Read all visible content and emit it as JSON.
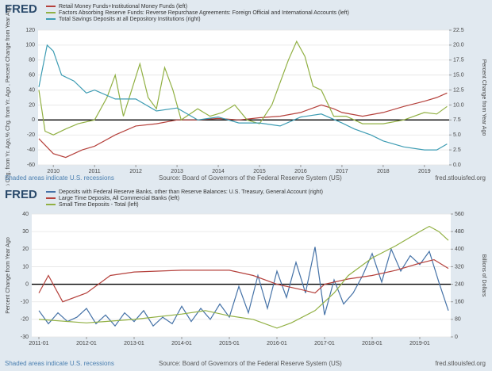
{
  "chart_data": [
    {
      "type": "line",
      "logo": "FRED",
      "series": [
        {
          "name": "Retail Money Funds+Institutional Money Funds (left)",
          "color": "#b5413c",
          "axis": "y",
          "x": [
            2009.65,
            2010.0,
            2010.3,
            2010.7,
            2011.0,
            2011.5,
            2012.0,
            2012.5,
            2013.0,
            2013.5,
            2014.0,
            2014.5,
            2015.0,
            2015.5,
            2016.0,
            2016.5,
            2016.8,
            2017.0,
            2017.5,
            2018.0,
            2018.5,
            2019.0,
            2019.3,
            2019.55
          ],
          "values": [
            -25,
            -45,
            -50,
            -40,
            -35,
            -20,
            -8,
            -5,
            0,
            0,
            2,
            0,
            3,
            5,
            10,
            20,
            15,
            10,
            5,
            10,
            18,
            25,
            30,
            36
          ]
        },
        {
          "name": "Factors Absorbing Reserve Funds: Reverse Repurchase Agreements: Foreign Official and International Accounts (left)",
          "color": "#91b043",
          "axis": "y",
          "x": [
            2009.65,
            2009.8,
            2010.0,
            2010.3,
            2010.6,
            2011.0,
            2011.3,
            2011.5,
            2011.7,
            2011.9,
            2012.1,
            2012.3,
            2012.5,
            2012.7,
            2012.9,
            2013.1,
            2013.5,
            2013.8,
            2014.1,
            2014.4,
            2014.7,
            2015.0,
            2015.3,
            2015.5,
            2015.7,
            2015.9,
            2016.1,
            2016.3,
            2016.5,
            2016.8,
            2017.1,
            2017.5,
            2018.0,
            2018.5,
            2019.0,
            2019.3,
            2019.55
          ],
          "values": [
            40,
            -15,
            -20,
            -12,
            -5,
            0,
            30,
            60,
            5,
            40,
            75,
            30,
            15,
            70,
            40,
            0,
            15,
            5,
            10,
            20,
            0,
            -5,
            20,
            50,
            80,
            105,
            85,
            45,
            40,
            5,
            5,
            -5,
            -5,
            0,
            10,
            8,
            18
          ]
        },
        {
          "name": "Total Savings Deposits at all Depository Institutions (right)",
          "color": "#3d9cb3",
          "axis": "y2",
          "x": [
            2009.65,
            2009.85,
            2010.0,
            2010.2,
            2010.5,
            2010.8,
            2011.0,
            2011.5,
            2012.0,
            2012.5,
            2013.0,
            2013.5,
            2014.0,
            2014.5,
            2015.0,
            2015.5,
            2016.0,
            2016.5,
            2017.0,
            2017.3,
            2017.7,
            2018.0,
            2018.5,
            2019.0,
            2019.3,
            2019.55
          ],
          "values": [
            13,
            20,
            19,
            15,
            14,
            12,
            12.5,
            11,
            11,
            9,
            9.5,
            7.5,
            8,
            7,
            7,
            6.5,
            8,
            8.5,
            7,
            6,
            5,
            4,
            3,
            2.5,
            2.5,
            3.5
          ]
        }
      ],
      "xlim": [
        2009.63,
        2019.6
      ],
      "xticks": [
        2010,
        2011,
        2012,
        2013,
        2014,
        2015,
        2016,
        2017,
        2018,
        2019
      ],
      "ylim": [
        -60,
        120
      ],
      "yticks": [
        -60,
        -40,
        -20,
        0,
        20,
        40,
        60,
        80,
        100,
        120
      ],
      "y2lim": [
        0,
        22.5
      ],
      "y2ticks": [
        {
          "value": 0,
          "label": "0.0"
        },
        2.5,
        {
          "value": 5,
          "label": "5.0"
        },
        7.5,
        {
          "value": 10,
          "label": "10.0"
        },
        12.5,
        {
          "value": 15,
          "label": "15.0"
        },
        17.5,
        {
          "value": 20,
          "label": "20.0"
        },
        22.5
      ],
      "ylabel": "% Chg. from Yr. Ago,% Chg. from Yr. Ago , Percent Change from Year Ago",
      "y2label": "Percent Change from Year Ago",
      "note": "Shaded areas indicate U.S. recessions",
      "source": "Source: Board of Governors of the Federal Reserve System (US)",
      "site": "fred.stlouisfed.org"
    },
    {
      "type": "line",
      "logo": "FRED",
      "series": [
        {
          "name": "Deposits with Federal Reserve Banks, other than Reserve Balances: U.S. Treasury, General Account (right)",
          "color": "#4572a7",
          "axis": "y2",
          "x": [
            2011.0,
            2011.2,
            2011.4,
            2011.6,
            2011.8,
            2012.0,
            2012.2,
            2012.4,
            2012.6,
            2012.8,
            2013.0,
            2013.2,
            2013.4,
            2013.6,
            2013.8,
            2014.0,
            2014.2,
            2014.4,
            2014.6,
            2014.8,
            2015.0,
            2015.2,
            2015.4,
            2015.6,
            2015.8,
            2016.0,
            2016.2,
            2016.4,
            2016.6,
            2016.8,
            2017.0,
            2017.2,
            2017.4,
            2017.6,
            2017.8,
            2018.0,
            2018.2,
            2018.4,
            2018.6,
            2018.8,
            2019.0,
            2019.2,
            2019.4,
            2019.6
          ],
          "values": [
            120,
            60,
            110,
            70,
            90,
            130,
            60,
            100,
            50,
            110,
            70,
            120,
            50,
            90,
            60,
            140,
            70,
            130,
            80,
            150,
            90,
            230,
            110,
            280,
            130,
            300,
            180,
            340,
            200,
            410,
            100,
            260,
            150,
            200,
            280,
            380,
            250,
            400,
            300,
            370,
            330,
            390,
            250,
            120
          ]
        },
        {
          "name": "Large Time Deposits, All Commercial Banks (left)",
          "color": "#b5413c",
          "axis": "y",
          "x": [
            2011.0,
            2011.2,
            2011.5,
            2012.0,
            2012.5,
            2013.0,
            2014.0,
            2014.5,
            2015.0,
            2015.5,
            2016.0,
            2016.5,
            2016.8,
            2017.0,
            2017.5,
            2018.0,
            2018.5,
            2019.0,
            2019.3,
            2019.6
          ],
          "values": [
            -5,
            5,
            -10,
            -5,
            5,
            7,
            8,
            8,
            8,
            5,
            0,
            -3,
            -5,
            0,
            3,
            5,
            8,
            12,
            14,
            9
          ]
        },
        {
          "name": "Small Time Deposits - Total (left)",
          "color": "#91b043",
          "axis": "y",
          "x": [
            2011.0,
            2012.0,
            2013.0,
            2014.0,
            2014.5,
            2015.0,
            2015.5,
            2016.0,
            2016.3,
            2016.8,
            2017.2,
            2017.5,
            2018.0,
            2018.5,
            2019.0,
            2019.2,
            2019.4,
            2019.6
          ],
          "values": [
            -20,
            -22,
            -20,
            -17,
            -15,
            -18,
            -20,
            -25,
            -22,
            -15,
            -5,
            5,
            15,
            22,
            30,
            33,
            30,
            25
          ]
        }
      ],
      "xlim": [
        2010.85,
        2019.65
      ],
      "xticks": [
        {
          "value": 2011,
          "label": "2011-01"
        },
        {
          "value": 2012,
          "label": "2012-01"
        },
        {
          "value": 2013,
          "label": "2013-01"
        },
        {
          "value": 2014,
          "label": "2014-01"
        },
        {
          "value": 2015,
          "label": "2015-01"
        },
        {
          "value": 2016,
          "label": "2016-01"
        },
        {
          "value": 2017,
          "label": "2017-01"
        },
        {
          "value": 2018,
          "label": "2018-01"
        },
        {
          "value": 2019,
          "label": "2019-01"
        }
      ],
      "ylim": [
        -30,
        40
      ],
      "yticks": [
        -30,
        -20,
        -10,
        0,
        10,
        20,
        30,
        40
      ],
      "y2lim": [
        0,
        560
      ],
      "y2ticks": [
        0,
        80,
        160,
        240,
        320,
        400,
        480,
        560
      ],
      "ylabel": "Percent Change from Year Ago",
      "y2label": "Billions of Dollars",
      "note": "Shaded areas indicate U.S. recessions",
      "source": "Source: Board of Governors of the Federal Reserve System (US)",
      "site": "fred.stlouisfed.org"
    }
  ]
}
